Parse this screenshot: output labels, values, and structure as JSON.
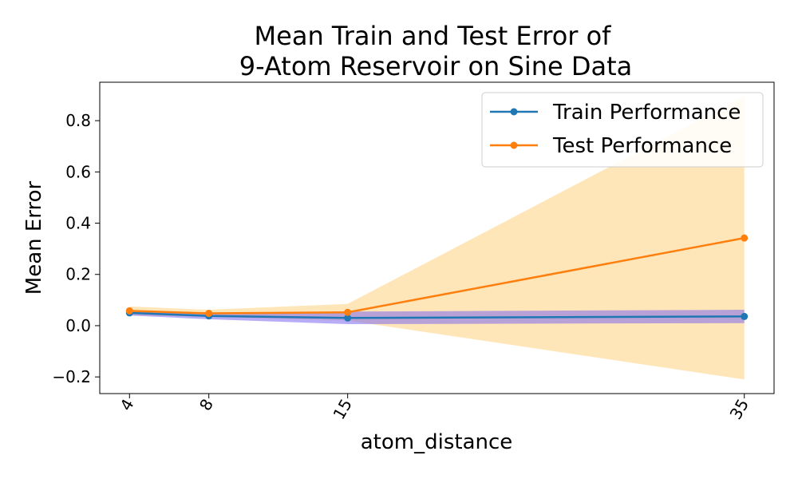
{
  "chart_data": {
    "type": "line",
    "title_lines": [
      "Mean Train and Test Error of",
      "9-Atom Reservoir on Sine Data"
    ],
    "xlabel": "atom_distance",
    "ylabel": "Mean Error",
    "x": [
      4,
      8,
      15,
      35
    ],
    "x_tick_labels": [
      "4",
      "8",
      "15",
      "35"
    ],
    "xlim": [
      2.5,
      36.5
    ],
    "ylim": [
      -0.265,
      0.95
    ],
    "y_ticks": [
      -0.2,
      0.0,
      0.2,
      0.4,
      0.6,
      0.8
    ],
    "y_tick_labels": [
      "−0.2",
      "0.0",
      "0.2",
      "0.4",
      "0.6",
      "0.8"
    ],
    "grid": false,
    "legend_position": "top-right",
    "series": [
      {
        "name": "Train Performance",
        "color": "#1f77b4",
        "band_color": "#7b68ee",
        "values": [
          0.05,
          0.038,
          0.03,
          0.036
        ],
        "lower": [
          0.04,
          0.025,
          0.006,
          0.01
        ],
        "upper": [
          0.06,
          0.051,
          0.055,
          0.062
        ]
      },
      {
        "name": "Test Performance",
        "color": "#ff7f0e",
        "band_color": "#ffd27f",
        "values": [
          0.058,
          0.048,
          0.052,
          0.342
        ],
        "lower": [
          0.04,
          0.035,
          0.02,
          -0.21
        ],
        "upper": [
          0.075,
          0.062,
          0.085,
          0.895
        ]
      }
    ]
  }
}
